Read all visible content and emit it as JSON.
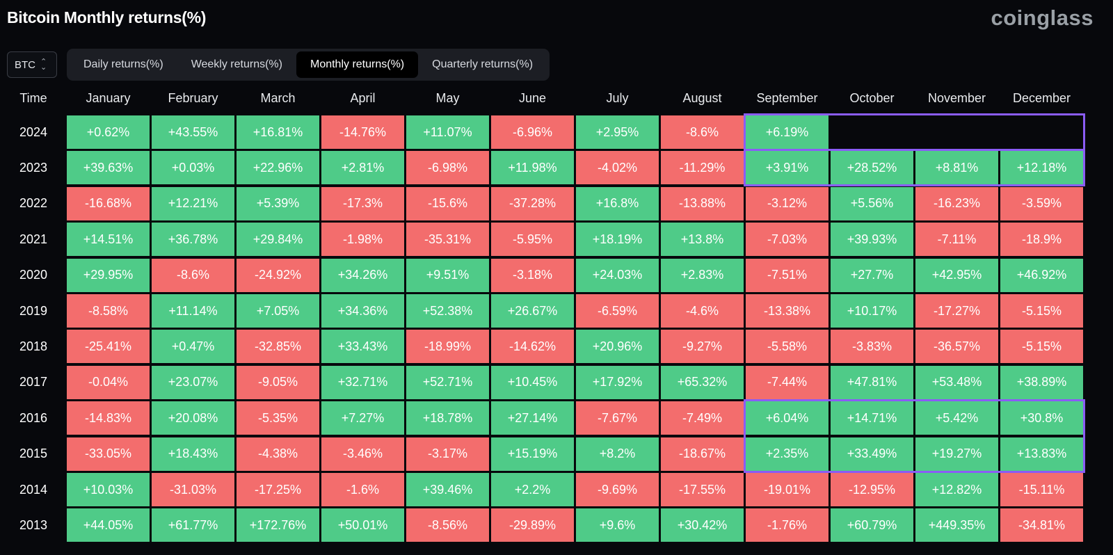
{
  "header": {
    "title": "Bitcoin Monthly returns(%)",
    "brand": "coinglass"
  },
  "asset_select": {
    "value": "BTC",
    "icon": "up-down-chevron-icon"
  },
  "tabs": [
    {
      "label": "Daily returns(%)",
      "active": false
    },
    {
      "label": "Weekly returns(%)",
      "active": false
    },
    {
      "label": "Monthly returns(%)",
      "active": true
    },
    {
      "label": "Quarterly returns(%)",
      "active": false
    }
  ],
  "table": {
    "time_header": "Time",
    "columns": [
      "January",
      "February",
      "March",
      "April",
      "May",
      "June",
      "July",
      "August",
      "September",
      "October",
      "November",
      "December"
    ],
    "rows": [
      {
        "year": "2024",
        "values": [
          "+0.62%",
          "+43.55%",
          "+16.81%",
          "-14.76%",
          "+11.07%",
          "-6.96%",
          "+2.95%",
          "-8.6%",
          "+6.19%"
        ]
      },
      {
        "year": "2023",
        "values": [
          "+39.63%",
          "+0.03%",
          "+22.96%",
          "+2.81%",
          "-6.98%",
          "+11.98%",
          "-4.02%",
          "-11.29%",
          "+3.91%",
          "+28.52%",
          "+8.81%",
          "+12.18%"
        ]
      },
      {
        "year": "2022",
        "values": [
          "-16.68%",
          "+12.21%",
          "+5.39%",
          "-17.3%",
          "-15.6%",
          "-37.28%",
          "+16.8%",
          "-13.88%",
          "-3.12%",
          "+5.56%",
          "-16.23%",
          "-3.59%"
        ]
      },
      {
        "year": "2021",
        "values": [
          "+14.51%",
          "+36.78%",
          "+29.84%",
          "-1.98%",
          "-35.31%",
          "-5.95%",
          "+18.19%",
          "+13.8%",
          "-7.03%",
          "+39.93%",
          "-7.11%",
          "-18.9%"
        ]
      },
      {
        "year": "2020",
        "values": [
          "+29.95%",
          "-8.6%",
          "-24.92%",
          "+34.26%",
          "+9.51%",
          "-3.18%",
          "+24.03%",
          "+2.83%",
          "-7.51%",
          "+27.7%",
          "+42.95%",
          "+46.92%"
        ]
      },
      {
        "year": "2019",
        "values": [
          "-8.58%",
          "+11.14%",
          "+7.05%",
          "+34.36%",
          "+52.38%",
          "+26.67%",
          "-6.59%",
          "-4.6%",
          "-13.38%",
          "+10.17%",
          "-17.27%",
          "-5.15%"
        ]
      },
      {
        "year": "2018",
        "values": [
          "-25.41%",
          "+0.47%",
          "-32.85%",
          "+33.43%",
          "-18.99%",
          "-14.62%",
          "+20.96%",
          "-9.27%",
          "-5.58%",
          "-3.83%",
          "-36.57%",
          "-5.15%"
        ]
      },
      {
        "year": "2017",
        "values": [
          "-0.04%",
          "+23.07%",
          "-9.05%",
          "+32.71%",
          "+52.71%",
          "+10.45%",
          "+17.92%",
          "+65.32%",
          "-7.44%",
          "+47.81%",
          "+53.48%",
          "+38.89%"
        ]
      },
      {
        "year": "2016",
        "values": [
          "-14.83%",
          "+20.08%",
          "-5.35%",
          "+7.27%",
          "+18.78%",
          "+27.14%",
          "-7.67%",
          "-7.49%",
          "+6.04%",
          "+14.71%",
          "+5.42%",
          "+30.8%"
        ]
      },
      {
        "year": "2015",
        "values": [
          "-33.05%",
          "+18.43%",
          "-4.38%",
          "-3.46%",
          "-3.17%",
          "+15.19%",
          "+8.2%",
          "-18.67%",
          "+2.35%",
          "+33.49%",
          "+19.27%",
          "+13.83%"
        ]
      },
      {
        "year": "2014",
        "values": [
          "+10.03%",
          "-31.03%",
          "-17.25%",
          "-1.6%",
          "+39.46%",
          "+2.2%",
          "-9.69%",
          "-17.55%",
          "-19.01%",
          "-12.95%",
          "+12.82%",
          "-15.11%"
        ]
      },
      {
        "year": "2013",
        "values": [
          "+44.05%",
          "+61.77%",
          "+172.76%",
          "+50.01%",
          "-8.56%",
          "-29.89%",
          "+9.6%",
          "+30.42%",
          "-1.76%",
          "+60.79%",
          "+449.35%",
          "-34.81%"
        ]
      }
    ],
    "highlights": [
      {
        "years": [
          "2024"
        ],
        "from_month": "September",
        "to_month": "December"
      },
      {
        "years": [
          "2023"
        ],
        "from_month": "September",
        "to_month": "December"
      },
      {
        "years": [
          "2016",
          "2015"
        ],
        "from_month": "September",
        "to_month": "December"
      }
    ]
  },
  "colors": {
    "positive": "#4fcb88",
    "negative": "#f36d6d",
    "highlight": "#8a5cf5",
    "background": "#07080c"
  }
}
